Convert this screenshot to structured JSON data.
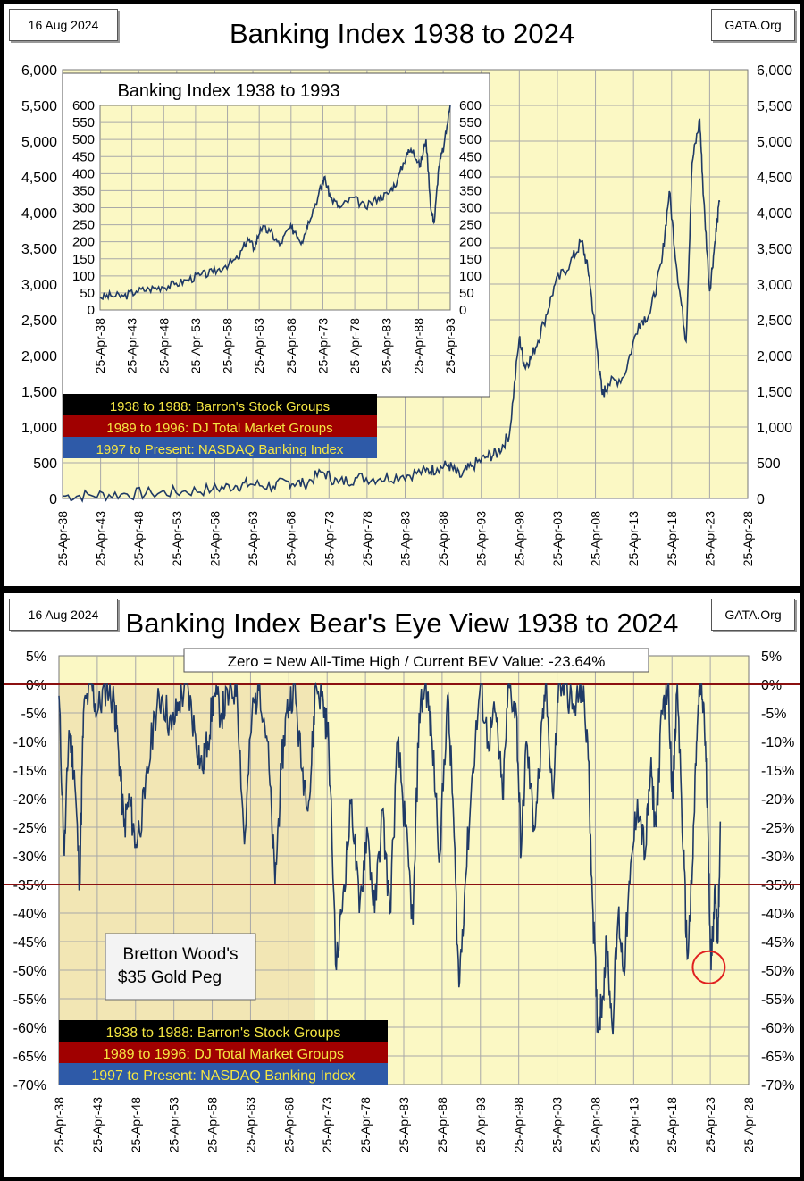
{
  "top_panel": {
    "date": "16 Aug 2024",
    "source": "GATA.Org",
    "title": "Banking Index 1938 to 2024",
    "legend": [
      {
        "text": "1938 to 1988: Barron's Stock Groups",
        "bg": "#000000",
        "fg": "#f5e642"
      },
      {
        "text": "1989 to 1996: DJ Total Market Groups",
        "bg": "#a00000",
        "fg": "#f5e642"
      },
      {
        "text": "1997 to Present: NASDAQ Banking Index",
        "bg": "#2e5aa8",
        "fg": "#f5e642"
      }
    ]
  },
  "bottom_panel": {
    "date": "16 Aug 2024",
    "source": "GATA.Org",
    "title": "Banking Index Bear's Eye View 1938 to 2024",
    "banner": "Zero = New All-Time High / Current BEV Value:  -23.64%",
    "bretton_line1": "Bretton Wood's",
    "bretton_line2": "$35 Gold Peg",
    "legend": [
      {
        "text": "1938 to 1988: Barron's Stock Groups",
        "bg": "#000000",
        "fg": "#f5e642"
      },
      {
        "text": "1989 to 1996: DJ Total Market Groups",
        "bg": "#a00000",
        "fg": "#f5e642"
      },
      {
        "text": "1997 to Present: NASDAQ Banking Index",
        "bg": "#2e5aa8",
        "fg": "#f5e642"
      }
    ]
  },
  "colors": {
    "plot_bg": "#fbf8c4",
    "bretton_shade": "#f2e6b4",
    "series": "#1f3a66",
    "grid": "#a8a8a8",
    "ref_line": "#8b1010",
    "circle": "#e02020"
  },
  "chart_data": [
    {
      "type": "line",
      "title": "Banking Index 1938 to 2024",
      "x_ticks": [
        "25-Apr-38",
        "25-Apr-43",
        "25-Apr-48",
        "25-Apr-53",
        "25-Apr-58",
        "25-Apr-63",
        "25-Apr-68",
        "25-Apr-73",
        "25-Apr-78",
        "25-Apr-83",
        "25-Apr-88",
        "25-Apr-93",
        "25-Apr-98",
        "25-Apr-03",
        "25-Apr-08",
        "25-Apr-13",
        "25-Apr-18",
        "25-Apr-23",
        "25-Apr-28"
      ],
      "xlim": [
        1938.3,
        2028.3
      ],
      "ylim": [
        0,
        6000
      ],
      "y_ticks": [
        "0",
        "500",
        "1,000",
        "1,500",
        "2,000",
        "2,500",
        "3,000",
        "3,500",
        "4,000",
        "4,500",
        "5,000",
        "5,500",
        "6,000"
      ],
      "grid": true,
      "series": [
        {
          "x": [
            1938.3,
            1942,
            1946,
            1950,
            1954,
            1958,
            1961,
            1963,
            1966,
            1968,
            1970,
            1972.5,
            1974.5,
            1977,
            1980,
            1983,
            1986,
            1987.5,
            1989,
            1990.5,
            1992,
            1994,
            1995.5,
            1997,
            1998.3,
            1999,
            2000,
            2001.5,
            2003,
            2005,
            2006.5,
            2007.5,
            2008.5,
            2009.2,
            2010,
            2012,
            2014,
            2015.5,
            2017,
            2018,
            2019,
            2020.2,
            2021,
            2022,
            2022.5,
            2023.3,
            2024,
            2024.6
          ],
          "y": [
            35,
            45,
            60,
            75,
            95,
            130,
            180,
            200,
            170,
            240,
            200,
            370,
            220,
            290,
            280,
            320,
            380,
            420,
            470,
            300,
            450,
            580,
            640,
            900,
            2250,
            1850,
            2000,
            2450,
            3000,
            3300,
            3600,
            3100,
            2100,
            1450,
            1600,
            1700,
            2450,
            2600,
            3300,
            4300,
            3200,
            2200,
            4700,
            5300,
            4200,
            2900,
            3600,
            4150
          ]
        }
      ]
    },
    {
      "type": "line",
      "title": "Banking Index 1938 to 1993",
      "x_ticks": [
        "25-Apr-38",
        "25-Apr-43",
        "25-Apr-48",
        "25-Apr-53",
        "25-Apr-58",
        "25-Apr-63",
        "25-Apr-68",
        "25-Apr-73",
        "25-Apr-78",
        "25-Apr-83",
        "25-Apr-88",
        "25-Apr-93"
      ],
      "xlim": [
        1938.3,
        1993.3
      ],
      "ylim": [
        0,
        600
      ],
      "y_ticks": [
        "0",
        "50",
        "100",
        "150",
        "200",
        "250",
        "300",
        "350",
        "400",
        "450",
        "500",
        "550",
        "600"
      ],
      "grid": true,
      "series": [
        {
          "x": [
            1938.3,
            1940,
            1942,
            1944,
            1946,
            1948,
            1950,
            1952,
            1954,
            1956,
            1958,
            1960,
            1961.5,
            1962.5,
            1963.5,
            1965,
            1966.5,
            1968,
            1969,
            1970,
            1971,
            1972.5,
            1973.5,
            1974.5,
            1976,
            1978,
            1980,
            1982,
            1983.5,
            1985,
            1986.5,
            1987.5,
            1988.5,
            1989.5,
            1990.3,
            1990.8,
            1991.5,
            1992.3,
            1993.3
          ],
          "y": [
            38,
            42,
            40,
            55,
            62,
            68,
            75,
            88,
            102,
            110,
            130,
            150,
            210,
            180,
            240,
            230,
            190,
            240,
            230,
            200,
            260,
            330,
            390,
            330,
            300,
            330,
            300,
            330,
            340,
            380,
            460,
            470,
            420,
            500,
            290,
            260,
            420,
            480,
            600
          ]
        }
      ]
    },
    {
      "type": "line",
      "title": "Banking Index Bear's Eye View 1938 to 2024",
      "x_ticks": [
        "25-Apr-38",
        "25-Apr-43",
        "25-Apr-48",
        "25-Apr-53",
        "25-Apr-58",
        "25-Apr-63",
        "25-Apr-68",
        "25-Apr-73",
        "25-Apr-78",
        "25-Apr-83",
        "25-Apr-88",
        "25-Apr-93",
        "25-Apr-98",
        "25-Apr-03",
        "25-Apr-08",
        "25-Apr-13",
        "25-Apr-18",
        "25-Apr-23",
        "25-Apr-28"
      ],
      "xlim": [
        1938.3,
        2028.3
      ],
      "ylim": [
        -70,
        5
      ],
      "y_ticks": [
        "5%",
        "0%",
        "-5%",
        "-10%",
        "-15%",
        "-20%",
        "-25%",
        "-30%",
        "-35%",
        "-40%",
        "-45%",
        "-50%",
        "-55%",
        "-60%",
        "-65%",
        "-70%"
      ],
      "grid": true,
      "reference_lines": [
        0,
        -35
      ],
      "shaded_span": [
        1938.3,
        1971.6
      ],
      "annotation_circle": {
        "x": 2023.1,
        "y": -49.5
      },
      "series": [
        {
          "x": [
            1938.3,
            1939,
            1939.6,
            1940.3,
            1941,
            1941.5,
            1942.5,
            1943.3,
            1944.5,
            1945.5,
            1946,
            1946.8,
            1947.5,
            1948.3,
            1949.5,
            1950.8,
            1951.8,
            1953,
            1954,
            1955,
            1956,
            1957,
            1957.7,
            1958.5,
            1959.5,
            1960.5,
            1961.5,
            1962.5,
            1963.5,
            1964.5,
            1965.5,
            1966.5,
            1967.3,
            1968,
            1969,
            1970,
            1971,
            1971.8,
            1972.8,
            1973.5,
            1974.5,
            1975.5,
            1976.5,
            1977.5,
            1978.5,
            1979.5,
            1980.5,
            1981.5,
            1982.5,
            1983.5,
            1984.5,
            1985.3,
            1986.2,
            1987,
            1988,
            1989,
            1989.7,
            1990.5,
            1991.3,
            1992.3,
            1993.3,
            1994.3,
            1995.3,
            1996.2,
            1997,
            1998,
            1998.6,
            1999.3,
            2000.3,
            2001,
            2001.8,
            2002.8,
            2003.5,
            2004.5,
            2005.5,
            2006.5,
            2007.3,
            2008,
            2008.6,
            2009.2,
            2009.8,
            2010.5,
            2011.3,
            2012,
            2012.8,
            2013.8,
            2014.8,
            2015.5,
            2016.2,
            2017,
            2017.8,
            2018.4,
            2019,
            2019.8,
            2020.3,
            2020.9,
            2021.5,
            2022,
            2022.5,
            2023,
            2023.4,
            2023.9,
            2024.3,
            2024.6
          ],
          "y": [
            -2,
            -30,
            -8,
            -15,
            -35,
            -5,
            0,
            -5,
            0,
            -3,
            -10,
            -25,
            -20,
            -28,
            -20,
            -5,
            -2,
            -8,
            -3,
            0,
            -8,
            -15,
            -10,
            -2,
            -5,
            -2,
            0,
            -28,
            -5,
            0,
            -10,
            -35,
            -15,
            -5,
            0,
            -15,
            -20,
            0,
            -3,
            -10,
            -50,
            -35,
            -20,
            -40,
            -25,
            -40,
            -22,
            -40,
            -10,
            -25,
            -42,
            -5,
            0,
            -10,
            -30,
            -2,
            -20,
            -53,
            -35,
            -15,
            0,
            -10,
            -5,
            -20,
            0,
            -5,
            -30,
            -10,
            -25,
            -15,
            0,
            -20,
            0,
            0,
            -5,
            0,
            -10,
            -40,
            -60,
            -55,
            -45,
            -60,
            -40,
            -50,
            -35,
            -20,
            -30,
            -15,
            -25,
            -5,
            0,
            -20,
            0,
            -30,
            -48,
            -35,
            -10,
            0,
            -5,
            -25,
            -50,
            -35,
            -45,
            -24
          ]
        }
      ]
    }
  ]
}
